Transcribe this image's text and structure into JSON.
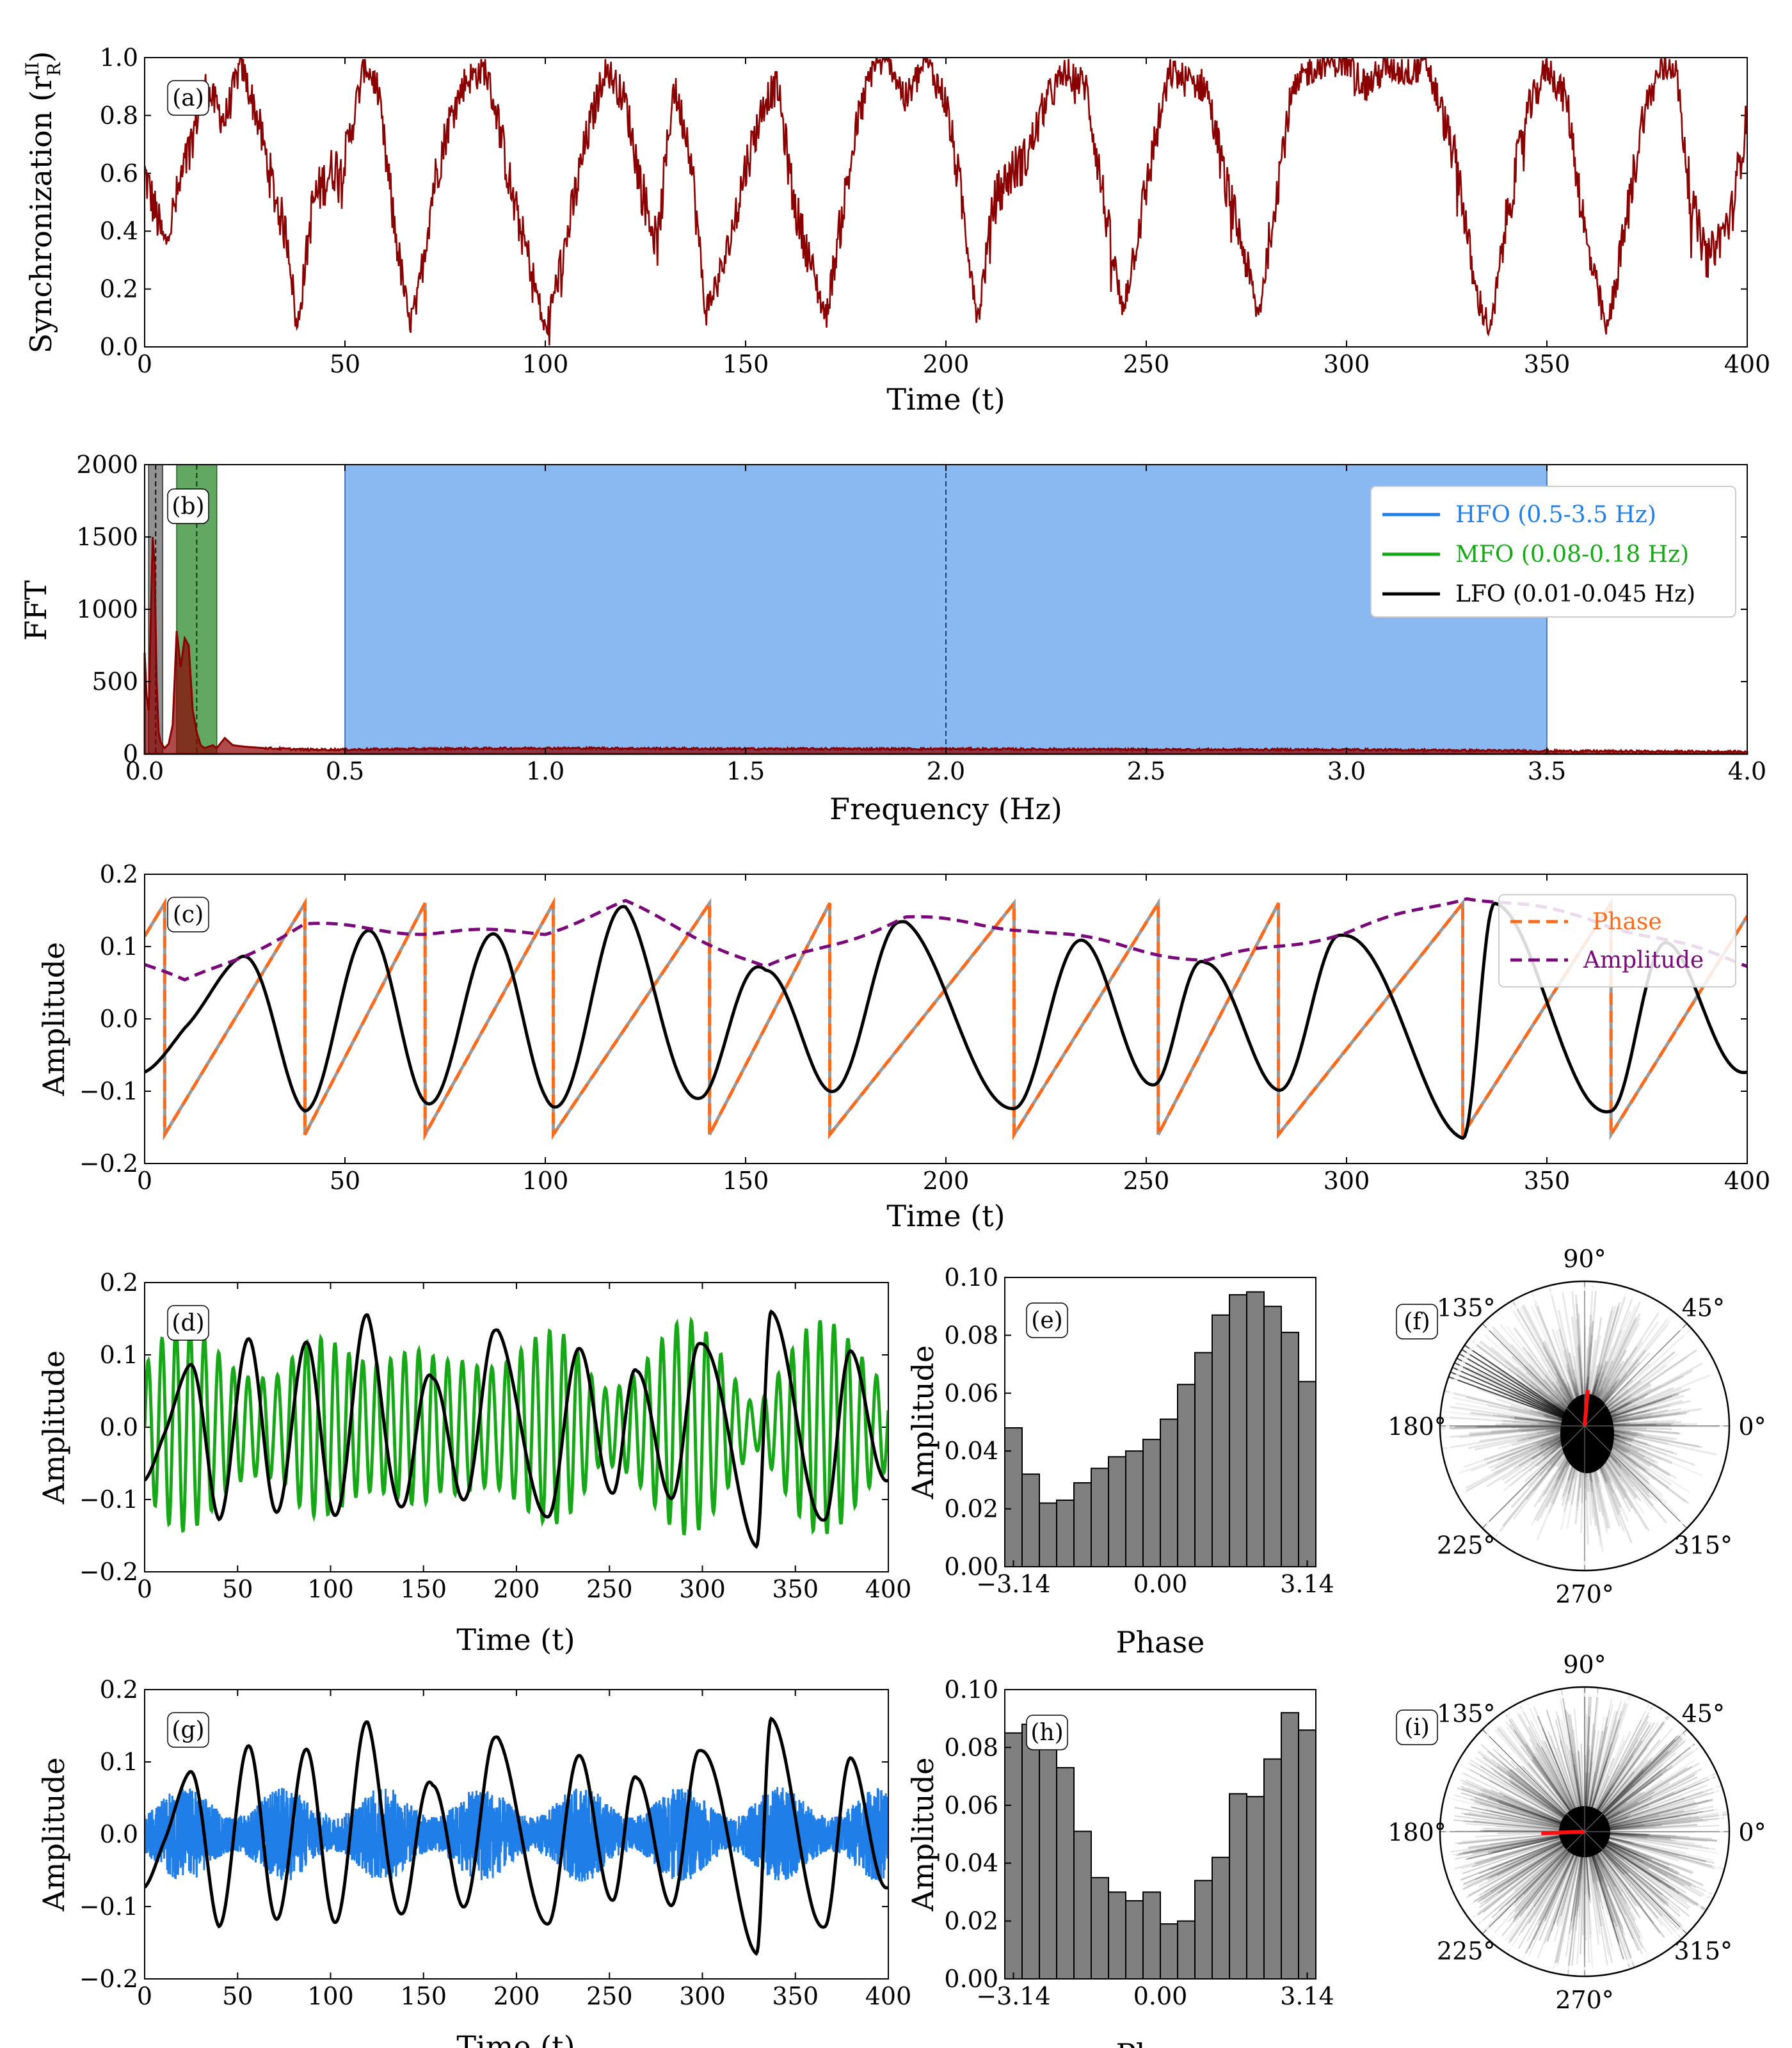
{
  "colors": {
    "sync": "#8b0000",
    "hfo": "#1f7ee8",
    "hfo_band": "#8ab8f0",
    "mfo": "#17a817",
    "mfo_band": "#2e8b2e",
    "lfo": "#000000",
    "phase": "#ff6a1a",
    "amplitude": "#7a0a7a",
    "hist_bar": "#808080"
  },
  "chart_data": [
    {
      "id": "a",
      "panel_label": "(a)",
      "type": "line",
      "xlabel": "Time (t)",
      "ylabel": "Synchronization (r",
      "ylabel_sup": "II",
      "ylabel_sub": "R",
      "ylabel_close": ")",
      "xlim": [
        0,
        400
      ],
      "ylim": [
        0,
        1.0
      ],
      "xticks": [
        "0",
        "50",
        "100",
        "150",
        "200",
        "250",
        "300",
        "350",
        "400"
      ],
      "yticks": [
        "0.0",
        "0.2",
        "0.4",
        "0.6",
        "0.8",
        "1.0"
      ],
      "x": [
        0,
        5,
        10,
        15,
        20,
        24,
        28,
        32,
        36,
        38,
        42,
        46,
        50,
        55,
        58,
        62,
        66,
        68,
        72,
        76,
        80,
        85,
        88,
        92,
        96,
        100,
        105,
        110,
        115,
        120,
        124,
        128,
        132,
        136,
        140,
        145,
        150,
        155,
        158,
        162,
        166,
        170,
        174,
        178,
        182,
        186,
        190,
        195,
        200,
        204,
        208,
        212,
        216,
        220,
        225,
        230,
        235,
        240,
        244,
        248,
        252,
        256,
        260,
        265,
        270,
        274,
        278,
        282,
        286,
        290,
        295,
        300,
        305,
        310,
        315,
        320,
        324,
        328,
        332,
        336,
        340,
        345,
        350,
        355,
        360,
        365,
        370,
        374,
        378,
        382,
        386,
        390,
        396,
        400
      ],
      "y": [
        0.6,
        0.35,
        0.62,
        0.9,
        0.78,
        0.98,
        0.8,
        0.55,
        0.35,
        0.05,
        0.5,
        0.6,
        0.65,
        0.98,
        0.9,
        0.45,
        0.08,
        0.15,
        0.55,
        0.78,
        0.92,
        0.96,
        0.8,
        0.5,
        0.3,
        0.05,
        0.35,
        0.7,
        0.97,
        0.85,
        0.55,
        0.35,
        0.9,
        0.7,
        0.12,
        0.3,
        0.62,
        0.86,
        0.9,
        0.5,
        0.3,
        0.1,
        0.45,
        0.78,
        0.98,
        0.99,
        0.85,
        0.99,
        0.85,
        0.5,
        0.1,
        0.5,
        0.6,
        0.65,
        0.85,
        0.95,
        0.9,
        0.45,
        0.12,
        0.4,
        0.7,
        0.95,
        0.92,
        0.9,
        0.55,
        0.35,
        0.1,
        0.5,
        0.85,
        0.95,
        0.99,
        0.98,
        0.9,
        0.97,
        0.95,
        0.98,
        0.8,
        0.6,
        0.2,
        0.05,
        0.45,
        0.8,
        0.97,
        0.85,
        0.35,
        0.05,
        0.45,
        0.8,
        0.95,
        0.98,
        0.5,
        0.3,
        0.45,
        0.8
      ]
    },
    {
      "id": "b",
      "panel_label": "(b)",
      "type": "area",
      "xlabel": "Frequency (Hz)",
      "ylabel": "FFT",
      "xlim": [
        0,
        4.0
      ],
      "ylim": [
        0,
        2000
      ],
      "xticks": [
        "0.0",
        "0.5",
        "1.0",
        "1.5",
        "2.0",
        "2.5",
        "3.0",
        "3.5",
        "4.0"
      ],
      "yticks": [
        "0",
        "500",
        "1000",
        "1500",
        "2000"
      ],
      "bands": [
        {
          "name": "HFO (0.5-3.5 Hz)",
          "range": [
            0.5,
            3.5
          ],
          "center": 2.0
        },
        {
          "name": "MFO (0.08-0.18 Hz)",
          "range": [
            0.08,
            0.18
          ],
          "center": 0.13
        },
        {
          "name": "LFO (0.01-0.045 Hz)",
          "range": [
            0.01,
            0.045
          ],
          "center": 0.0275
        }
      ],
      "x": [
        0,
        0.005,
        0.01,
        0.015,
        0.02,
        0.025,
        0.03,
        0.035,
        0.04,
        0.045,
        0.05,
        0.06,
        0.07,
        0.08,
        0.09,
        0.1,
        0.11,
        0.12,
        0.13,
        0.14,
        0.15,
        0.16,
        0.17,
        0.18,
        0.2,
        0.22,
        0.25,
        0.3,
        0.35,
        0.4,
        0.5,
        0.7,
        1.0,
        1.5,
        2.0,
        2.5,
        3.0,
        3.5,
        4.0
      ],
      "y": [
        700,
        400,
        300,
        900,
        1500,
        1300,
        500,
        150,
        80,
        60,
        40,
        70,
        200,
        850,
        600,
        800,
        750,
        300,
        150,
        60,
        40,
        50,
        60,
        40,
        110,
        60,
        50,
        40,
        35,
        30,
        30,
        35,
        40,
        35,
        35,
        30,
        30,
        20,
        15
      ]
    },
    {
      "id": "c",
      "panel_label": "(c)",
      "type": "line",
      "xlabel": "Time (t)",
      "ylabel": "Amplitude",
      "xlim": [
        0,
        400
      ],
      "ylim": [
        -0.2,
        0.2
      ],
      "xticks": [
        "0",
        "50",
        "100",
        "150",
        "200",
        "250",
        "300",
        "350",
        "400"
      ],
      "yticks": [
        "−0.2",
        "−0.1",
        "0.0",
        "0.1",
        "0.2"
      ],
      "legend": [
        "Phase",
        "Amplitude"
      ],
      "peaks_t": [
        24,
        56,
        87,
        119,
        154,
        188,
        234,
        264,
        298,
        337,
        380
      ],
      "troughs_t": [
        0,
        40,
        71,
        102,
        139,
        171,
        217,
        252,
        283,
        329,
        366,
        400
      ],
      "wrap_t": [
        5,
        40,
        70,
        102,
        141,
        171,
        217,
        253,
        283,
        329,
        366
      ],
      "envelope": {
        "x": [
          0,
          10,
          40,
          70,
          100,
          120,
          155,
          190,
          220,
          265,
          300,
          330,
          360,
          400
        ],
        "y": [
          0.075,
          0.05,
          0.13,
          0.12,
          0.12,
          0.16,
          0.07,
          0.14,
          0.125,
          0.08,
          0.12,
          0.17,
          0.14,
          0.075
        ]
      }
    },
    {
      "id": "d",
      "panel_label": "(d)",
      "type": "line",
      "xlabel": "Time (t)",
      "ylabel": "Amplitude",
      "xlim": [
        0,
        400
      ],
      "ylim": [
        -0.2,
        0.2
      ],
      "xticks": [
        "0",
        "50",
        "100",
        "150",
        "200",
        "250",
        "300",
        "350",
        "400"
      ],
      "yticks": [
        "−0.2",
        "−0.1",
        "0.0",
        "0.1",
        "0.2"
      ],
      "series": [
        {
          "kind": "MFO"
        },
        {
          "kind": "LFO"
        }
      ]
    },
    {
      "id": "e",
      "panel_label": "(e)",
      "type": "bar",
      "xlabel": "Phase",
      "ylabel": "Amplitude",
      "xlim": [
        -3.14,
        3.14
      ],
      "ylim": [
        0,
        0.1
      ],
      "xticks": [
        "−3.14",
        "0.00",
        "3.14"
      ],
      "yticks": [
        "0.00",
        "0.02",
        "0.04",
        "0.06",
        "0.08",
        "0.10"
      ],
      "values": [
        0.048,
        0.032,
        0.022,
        0.023,
        0.029,
        0.034,
        0.038,
        0.04,
        0.044,
        0.051,
        0.063,
        0.074,
        0.087,
        0.094,
        0.095,
        0.09,
        0.081,
        0.064
      ]
    },
    {
      "id": "f",
      "panel_label": "(f)",
      "type": "polar",
      "angle_labels": [
        "0°",
        "45°",
        "90°",
        "135°",
        "180°",
        "225°",
        "270°",
        "315°"
      ],
      "mean_vector": {
        "angle_deg": 85,
        "length": 0.25
      }
    },
    {
      "id": "g",
      "panel_label": "(g)",
      "type": "line",
      "xlabel": "Time (t)",
      "ylabel": "Amplitude",
      "xlim": [
        0,
        400
      ],
      "ylim": [
        -0.2,
        0.2
      ],
      "xticks": [
        "0",
        "50",
        "100",
        "150",
        "200",
        "250",
        "300",
        "350",
        "400"
      ],
      "yticks": [
        "−0.2",
        "−0.1",
        "0.0",
        "0.1",
        "0.2"
      ],
      "series": [
        {
          "kind": "HFO"
        },
        {
          "kind": "LFO"
        }
      ]
    },
    {
      "id": "h",
      "panel_label": "(h)",
      "type": "bar",
      "xlabel": "Phase",
      "ylabel": "Amplitude",
      "xlim": [
        -3.14,
        3.14
      ],
      "ylim": [
        0,
        0.1
      ],
      "xticks": [
        "−3.14",
        "0.00",
        "3.14"
      ],
      "yticks": [
        "0.00",
        "0.02",
        "0.04",
        "0.06",
        "0.08",
        "0.10"
      ],
      "values": [
        0.085,
        0.088,
        0.082,
        0.073,
        0.051,
        0.035,
        0.03,
        0.027,
        0.03,
        0.019,
        0.02,
        0.034,
        0.042,
        0.064,
        0.063,
        0.076,
        0.092,
        0.086
      ]
    },
    {
      "id": "i",
      "panel_label": "(i)",
      "type": "polar",
      "angle_labels": [
        "0°",
        "45°",
        "90°",
        "135°",
        "180°",
        "225°",
        "270°",
        "315°"
      ],
      "mean_vector": {
        "angle_deg": 182,
        "length": 0.3
      }
    }
  ]
}
